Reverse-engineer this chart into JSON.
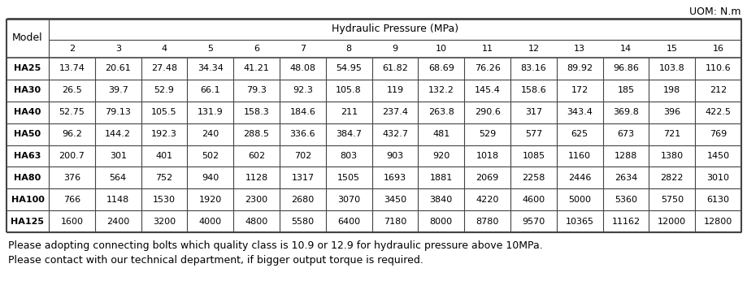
{
  "uom_label": "UOM: N.m",
  "header_main": "Hydraulic Pressure (MPa)",
  "col_header": "Model",
  "pressure_cols": [
    "2",
    "3",
    "4",
    "5",
    "6",
    "7",
    "8",
    "9",
    "10",
    "11",
    "12",
    "13",
    "14",
    "15",
    "16"
  ],
  "models": [
    "HA25",
    "HA30",
    "HA40",
    "HA50",
    "HA63",
    "HA80",
    "HA100",
    "HA125"
  ],
  "table_data": [
    [
      "13.74",
      "20.61",
      "27.48",
      "34.34",
      "41.21",
      "48.08",
      "54.95",
      "61.82",
      "68.69",
      "76.26",
      "83.16",
      "89.92",
      "96.86",
      "103.8",
      "110.6"
    ],
    [
      "26.5",
      "39.7",
      "52.9",
      "66.1",
      "79.3",
      "92.3",
      "105.8",
      "119",
      "132.2",
      "145.4",
      "158.6",
      "172",
      "185",
      "198",
      "212"
    ],
    [
      "52.75",
      "79.13",
      "105.5",
      "131.9",
      "158.3",
      "184.6",
      "211",
      "237.4",
      "263.8",
      "290.6",
      "317",
      "343.4",
      "369.8",
      "396",
      "422.5"
    ],
    [
      "96.2",
      "144.2",
      "192.3",
      "240",
      "288.5",
      "336.6",
      "384.7",
      "432.7",
      "481",
      "529",
      "577",
      "625",
      "673",
      "721",
      "769"
    ],
    [
      "200.7",
      "301",
      "401",
      "502",
      "602",
      "702",
      "803",
      "903",
      "920",
      "1018",
      "1085",
      "1160",
      "1288",
      "1380",
      "1450"
    ],
    [
      "376",
      "564",
      "752",
      "940",
      "1128",
      "1317",
      "1505",
      "1693",
      "1881",
      "2069",
      "2258",
      "2446",
      "2634",
      "2822",
      "3010"
    ],
    [
      "766",
      "1148",
      "1530",
      "1920",
      "2300",
      "2680",
      "3070",
      "3450",
      "3840",
      "4220",
      "4600",
      "5000",
      "5360",
      "5750",
      "6130"
    ],
    [
      "1600",
      "2400",
      "3200",
      "4000",
      "4800",
      "5580",
      "6400",
      "7180",
      "8000",
      "8780",
      "9570",
      "10365",
      "11162",
      "12000",
      "12800"
    ]
  ],
  "footnote1": "Please adopting connecting bolts which quality class is 10.9 or 12.9 for hydraulic pressure above 10MPa.",
  "footnote2": "Please contact with our technical department, if bigger output torque is required.",
  "bg_color": "#ffffff",
  "line_color": "#444444",
  "text_color": "#000000",
  "uom_fontsize": 9,
  "header_fontsize": 9,
  "cell_fontsize": 8,
  "footnote_fontsize": 9,
  "model_col_weight": 0.72,
  "data_col_weight": 1.0
}
